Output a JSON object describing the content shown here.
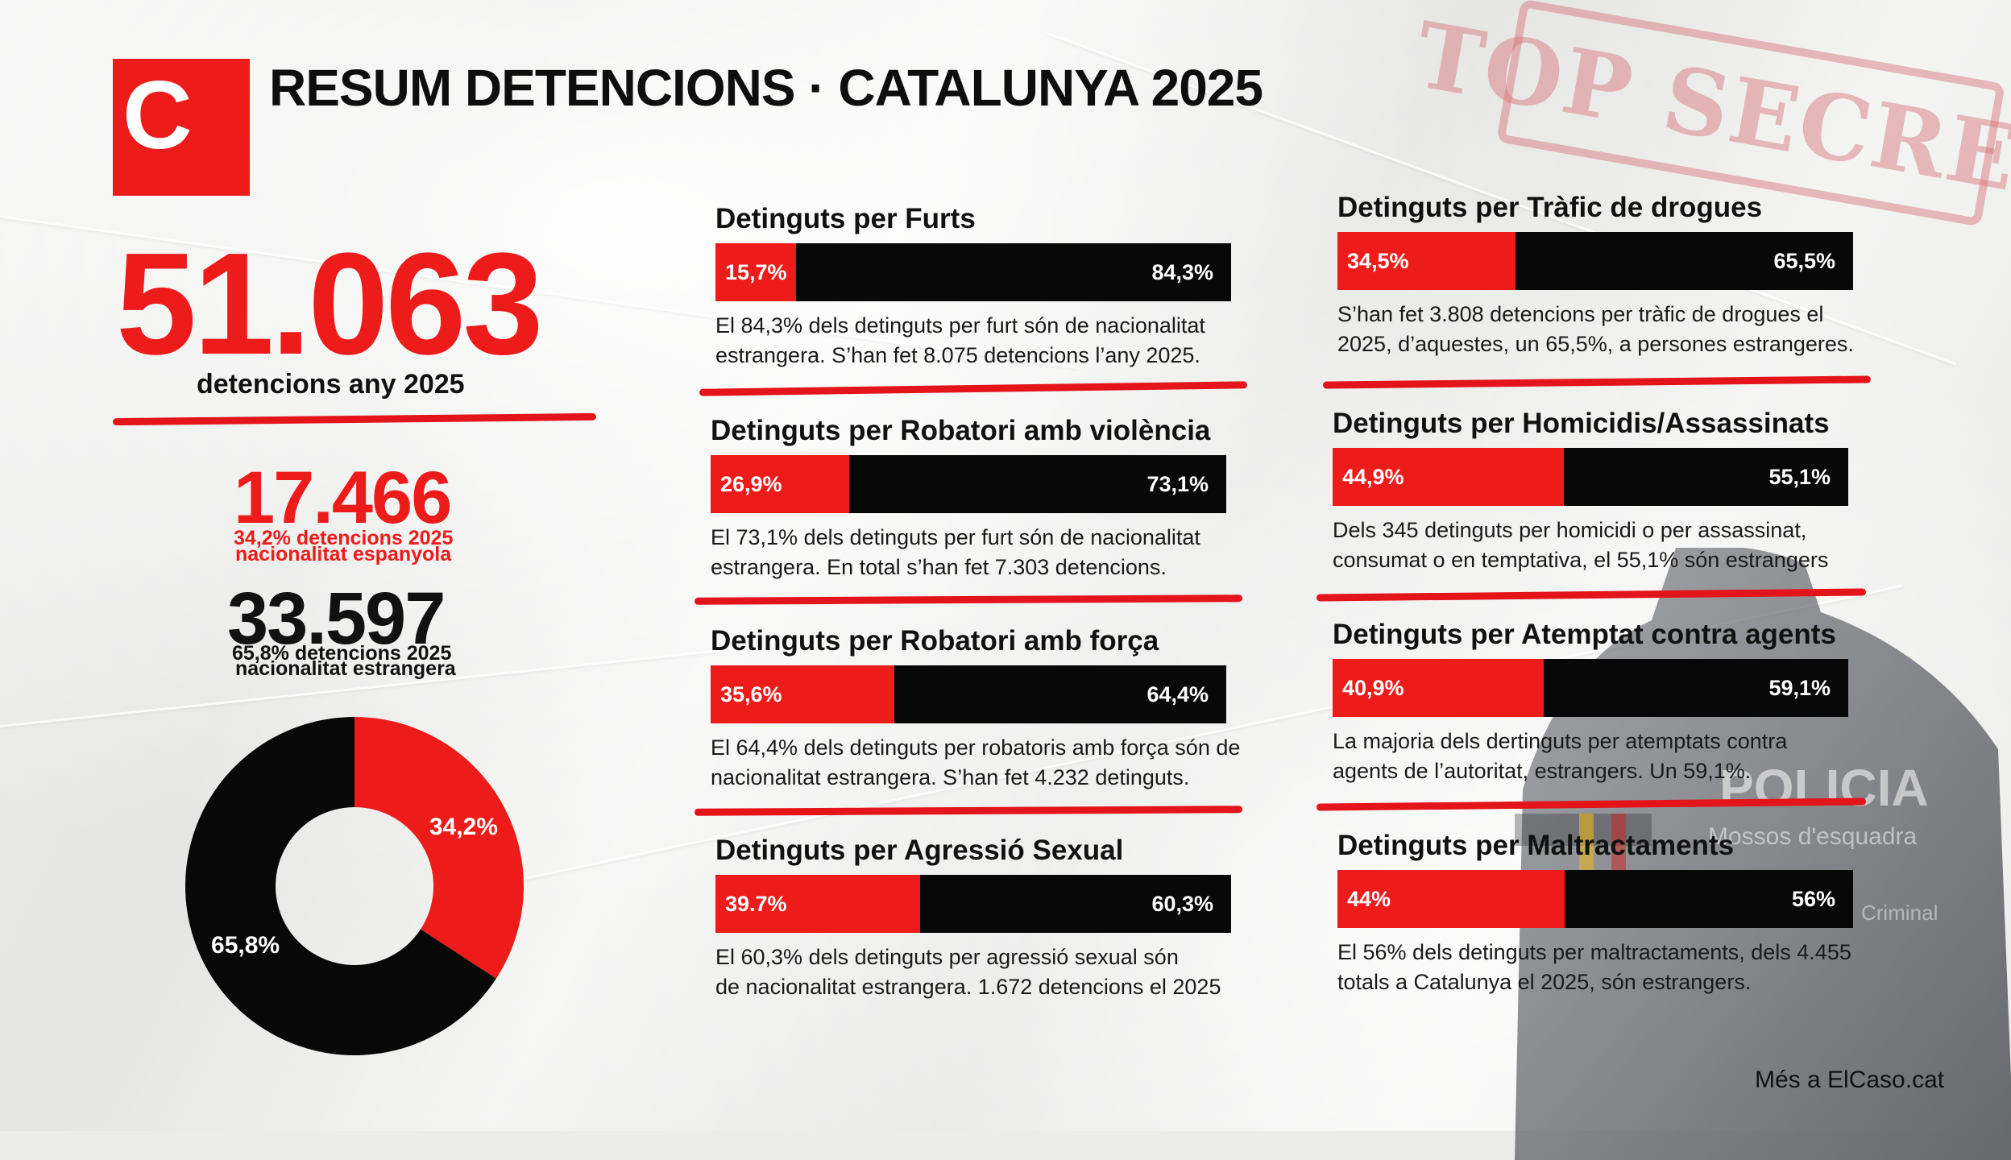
{
  "colors": {
    "accent": "#ee1b1b",
    "dark": "#080808",
    "stamp": "#d76e73"
  },
  "header": {
    "logo_letter": "C",
    "title": "RESUM DETENCIONS · CATALUNYA 2025"
  },
  "stamp_text": "TOP SECRET",
  "totals": {
    "total_number": "51.063",
    "total_label": "detencions any 2025",
    "spanish_number": "17.466",
    "spanish_line1": "34,2% detencions 2025",
    "spanish_line2": "nacionalitat espanyola",
    "foreign_number": "33.597",
    "foreign_line1": "65,8% detencions 2025",
    "foreign_line2": "nacionalitat estrangera"
  },
  "chart_data": [
    {
      "type": "pie",
      "categories": [
        "nacionalitat espanyola",
        "nacionalitat estrangera"
      ],
      "values": [
        34.2,
        65.8
      ],
      "labels": [
        "34,2%",
        "65,8%"
      ],
      "colors": [
        "#ee1b1b",
        "#080808"
      ]
    },
    {
      "type": "bar",
      "stacked": true,
      "orientation": "horizontal",
      "categories": [
        "Detinguts per Furts",
        "Detinguts per Robatori amb violència",
        "Detinguts per Robatori amb força",
        "Detinguts per Agressió Sexual",
        "Detinguts per Tràfic de drogues",
        "Detinguts per Homicidis/Assassinats",
        "Detinguts per Atemptat contra agents",
        "Detinguts per Maltractaments"
      ],
      "series": [
        {
          "values": [
            15.7,
            26.9,
            35.6,
            39.7,
            34.5,
            44.9,
            40.9,
            44
          ],
          "labels": [
            "15,7%",
            "26,9%",
            "35,6%",
            "39.7%",
            "34,5%",
            "44,9%",
            "40,9%",
            "44%"
          ]
        },
        {
          "values": [
            84.3,
            73.1,
            64.4,
            60.3,
            65.5,
            55.1,
            59.1,
            56
          ],
          "labels": [
            "84,3%",
            "73,1%",
            "64,4%",
            "60,3%",
            "65,5%",
            "55,1%",
            "59,1%",
            "56%"
          ]
        }
      ]
    }
  ],
  "categories": [
    {
      "title": "Detinguts per Furts",
      "red": 15.7,
      "red_label": "15,7%",
      "black_label": "84,3%",
      "desc1": "El 84,3% dels detinguts per furt són de nacionalitat",
      "desc2": "estrangera. S’han fet 8.075 detencions l’any 2025."
    },
    {
      "title": "Detinguts per Robatori amb violència",
      "red": 26.9,
      "red_label": "26,9%",
      "black_label": "73,1%",
      "desc1": "El 73,1% dels detinguts per furt són de nacionalitat",
      "desc2": "estrangera. En total s’han fet 7.303 detencions."
    },
    {
      "title": "Detinguts per Robatori amb força",
      "red": 35.6,
      "red_label": "35,6%",
      "black_label": "64,4%",
      "desc1": "El 64,4% dels detinguts per robatoris amb força són de",
      "desc2": "nacionalitat estrangera. S’han fet 4.232 detinguts."
    },
    {
      "title": "Detinguts per Agressió Sexual",
      "red": 39.7,
      "red_label": "39.7%",
      "black_label": "60,3%",
      "desc1": "El 60,3% dels detinguts per agressió sexual són",
      "desc2": "de nacionalitat estrangera. 1.672 detencions el 2025"
    },
    {
      "title": "Detinguts per Tràfic de drogues",
      "red": 34.5,
      "red_label": "34,5%",
      "black_label": "65,5%",
      "desc1": "S’han fet 3.808 detencions per tràfic de drogues el",
      "desc2": "2025, d’aquestes, un 65,5%, a persones estrangeres."
    },
    {
      "title": "Detinguts per Homicidis/Assassinats",
      "red": 44.9,
      "red_label": "44,9%",
      "black_label": "55,1%",
      "desc1": "Dels 345 detinguts per homicidi o per assassinat,",
      "desc2": "consumat o en temptativa, el 55,1% són estrangers"
    },
    {
      "title": "Detinguts per Atemptat contra agents",
      "red": 40.9,
      "red_label": "40,9%",
      "black_label": "59,1%",
      "desc1": "La majoria dels dertinguts per atemptats contra",
      "desc2": "agents de l’autoritat, estrangers. Un 59,1%."
    },
    {
      "title": "Detinguts per Maltractaments",
      "red": 44,
      "red_label": "44%",
      "black_label": "56%",
      "desc1": "El 56% dels detinguts per maltractaments, dels 4.455",
      "desc2": "totals a Catalunya el 2025, són estrangers."
    }
  ],
  "officer": {
    "line1": "POLICIA",
    "line2": "Mossos d'esquadra",
    "line3": "Criminal"
  },
  "footer": "Més a ElCaso.cat"
}
